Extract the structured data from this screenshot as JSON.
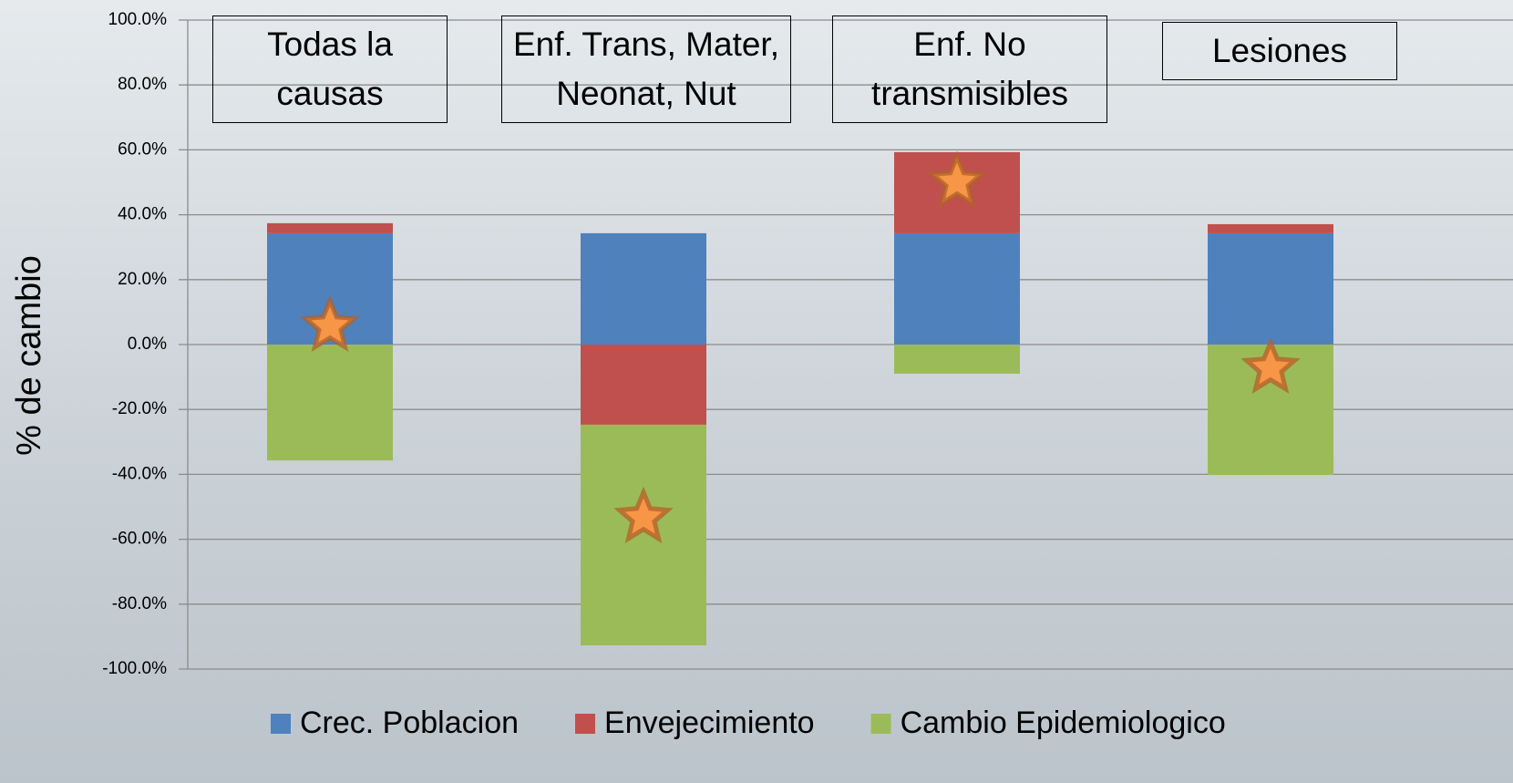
{
  "chart_data": {
    "type": "stacked_bar",
    "y_label": "% de cambio",
    "categories": [
      "Todas la causas",
      "Enf. Trans, Mater, Neonat, Nut",
      "Enf. No transmisibles",
      "Lesiones"
    ],
    "series": [
      {
        "name": "Crec. Poblacion",
        "color": "#4f81bd",
        "values": [
          34.3,
          34.3,
          34.3,
          34.3
        ]
      },
      {
        "name": "Envejecimiento",
        "color": "#c0504d",
        "values": [
          3.1,
          -24.7,
          25.0,
          2.8
        ]
      },
      {
        "name": "Cambio Epidemiologico",
        "color": "#9bbb59",
        "values": [
          -35.7,
          -68.0,
          -9.0,
          -40.2
        ]
      }
    ],
    "markers": {
      "color": "#f79646",
      "values": [
        5.6,
        -53.4,
        50.0,
        -7.3
      ]
    },
    "ylim": [
      -100,
      100
    ],
    "yticks": [
      {
        "value": -100,
        "label": "-100.0%"
      },
      {
        "value": -80,
        "label": "-80.0%"
      },
      {
        "value": -60,
        "label": "-60.0%"
      },
      {
        "value": -40,
        "label": "-40.0%"
      },
      {
        "value": -20,
        "label": "-20.0%"
      },
      {
        "value": 0,
        "label": "0.0%"
      },
      {
        "value": 20,
        "label": "20.0%"
      },
      {
        "value": 40,
        "label": "40.0%"
      },
      {
        "value": 60,
        "label": "60.0%"
      },
      {
        "value": 80,
        "label": "80.0%"
      },
      {
        "value": 100,
        "label": "100.0%"
      }
    ],
    "grid": true,
    "legend": "bottom"
  }
}
